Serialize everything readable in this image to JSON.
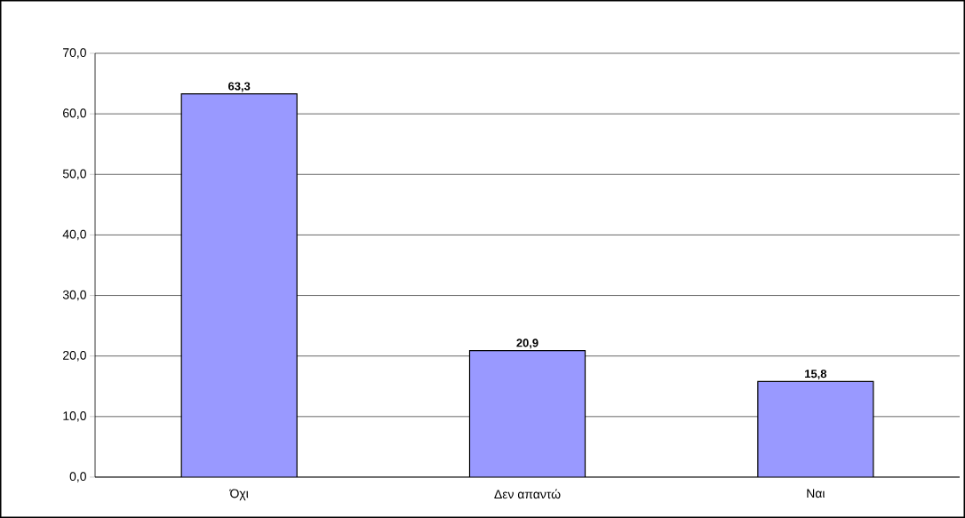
{
  "chart_data": {
    "type": "bar",
    "categories": [
      "Όχι",
      "Δεν απαντώ",
      "Ναι"
    ],
    "values": [
      63.3,
      20.9,
      15.8
    ],
    "value_labels": [
      "63,3",
      "20,9",
      "15,8"
    ],
    "color": "#9999ff",
    "ylim": [
      0,
      70
    ],
    "yticks": [
      {
        "value": 0,
        "label": "0,0"
      },
      {
        "value": 10,
        "label": "10,0"
      },
      {
        "value": 20,
        "label": "20,0"
      },
      {
        "value": 30,
        "label": "30,0"
      },
      {
        "value": 40,
        "label": "40,0"
      },
      {
        "value": 50,
        "label": "50,0"
      },
      {
        "value": 60,
        "label": "60,0"
      },
      {
        "value": 70,
        "label": "70,0"
      }
    ],
    "grid": "y"
  }
}
